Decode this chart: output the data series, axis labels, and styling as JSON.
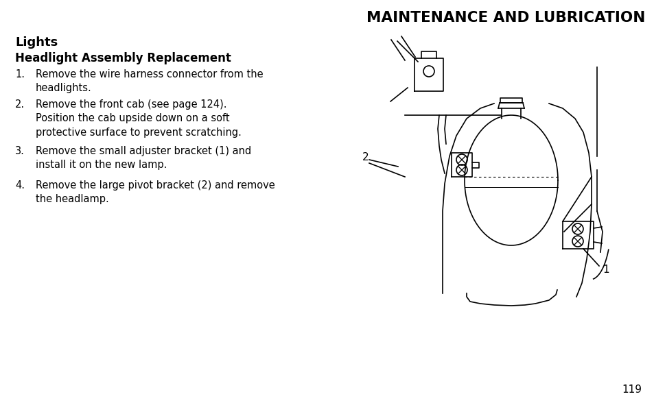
{
  "bg_color": "#ffffff",
  "title": "MAINTENANCE AND LUBRICATION",
  "title_fontsize": 15.5,
  "section_title": "Lights",
  "section_fontsize": 13,
  "subsection_title": "Headlight Assembly Replacement",
  "subsection_fontsize": 12,
  "items": [
    [
      "1.",
      "Remove the wire harness connector from the\nheadlights."
    ],
    [
      "2.",
      "Remove the front cab (see page 124).\nPosition the cab upside down on a soft\nprotective surface to prevent scratching."
    ],
    [
      "3.",
      "Remove the small adjuster bracket (1) and\ninstall it on the new lamp."
    ],
    [
      "4.",
      "Remove the large pivot bracket (2) and remove\nthe headlamp."
    ]
  ],
  "page_number": "119",
  "text_color": "#000000",
  "item_fontsize": 10.5
}
